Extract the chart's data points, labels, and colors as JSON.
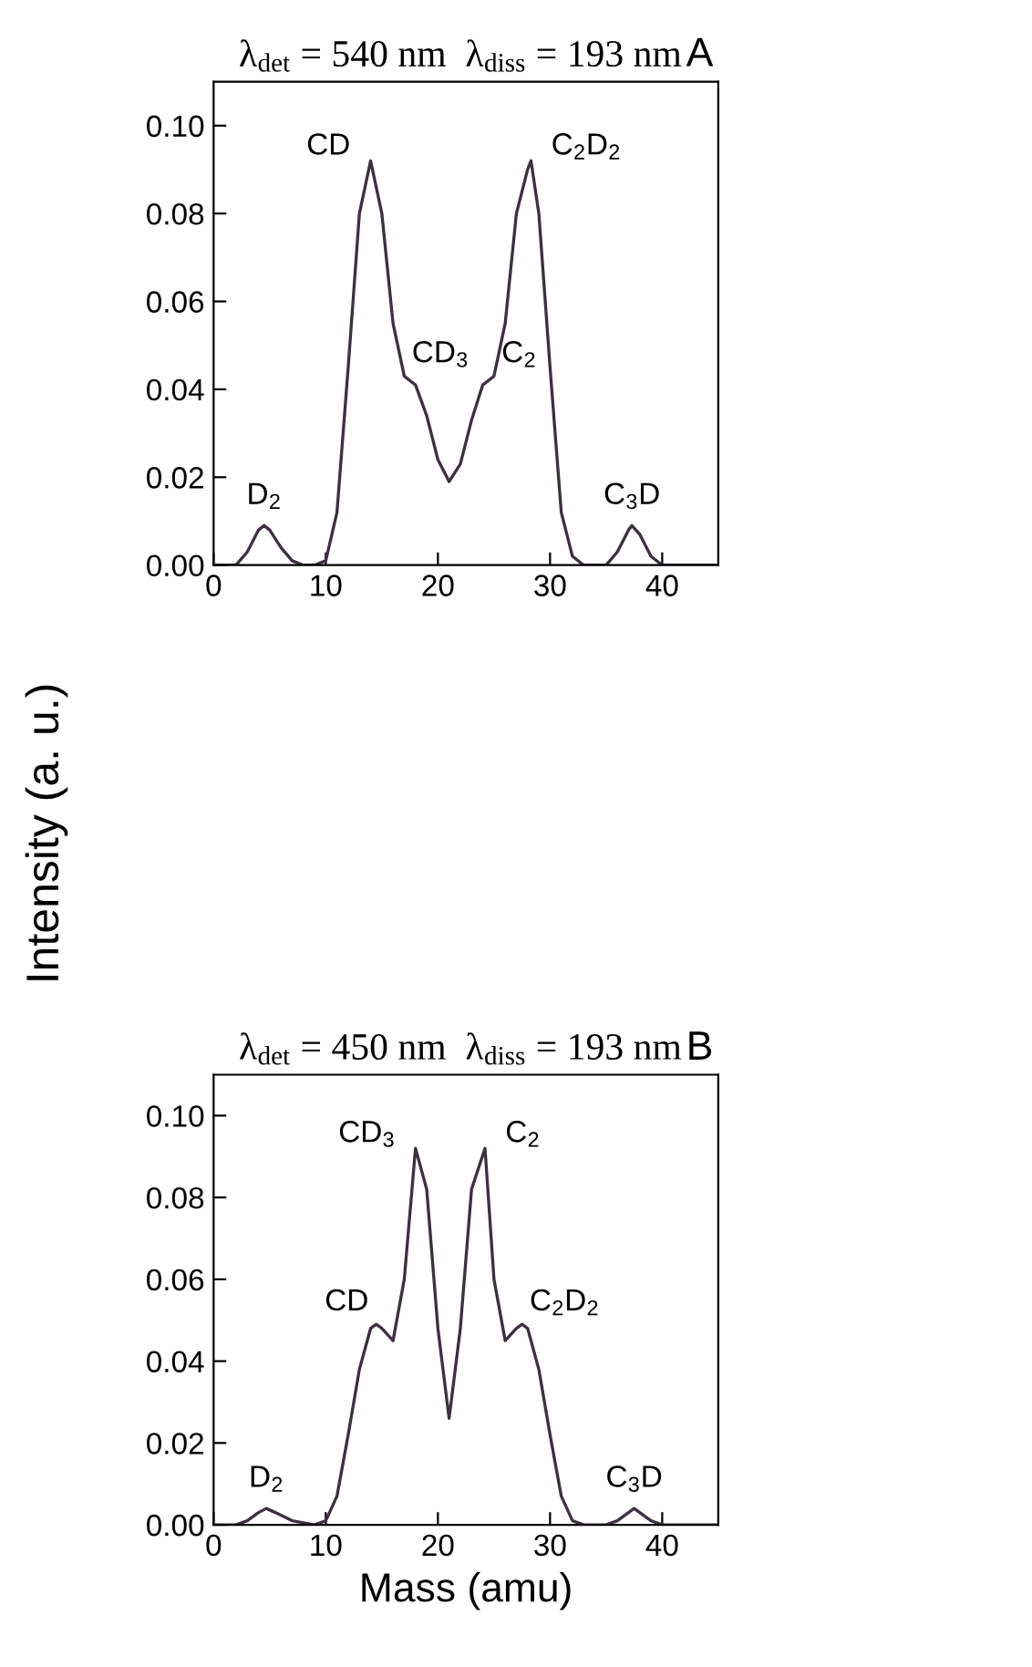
{
  "chart_data": [
    {
      "type": "line",
      "title": "λ$_{det}$ = 540 nm  λ$_{diss}$ = 193 nm",
      "ylabel": "Intensity (a. u.)",
      "xlim": [
        0,
        45
      ],
      "ylim": [
        0,
        0.11
      ],
      "xticks": [
        0,
        10,
        20,
        30,
        40
      ],
      "yticks": [
        {
          "value": 0,
          "label": "0.00"
        },
        {
          "value": 0.02,
          "label": "0.02"
        },
        {
          "value": 0.04,
          "label": "0.04"
        },
        {
          "value": 0.06,
          "label": "0.06"
        },
        {
          "value": 0.08,
          "label": "0.08"
        },
        {
          "value": 0.1,
          "label": "0.10"
        }
      ],
      "grid": false,
      "legend": false,
      "marker": "none",
      "line_style": "solid",
      "series": [
        {
          "color": "#3d3040",
          "x": [
            0,
            2,
            3,
            4,
            4.5,
            5,
            6,
            7,
            8,
            9,
            10,
            11,
            12,
            13,
            14,
            15,
            16,
            17,
            18,
            19,
            20,
            21,
            22,
            23,
            24,
            25,
            26,
            27,
            28,
            28.3,
            29,
            30,
            31,
            32,
            33,
            34,
            35,
            36,
            37,
            37.3,
            38,
            39,
            40,
            42,
            45
          ],
          "values": [
            0,
            0,
            0.003,
            0.008,
            0.009,
            0.008,
            0.004,
            0.001,
            0,
            0,
            0.001,
            0.012,
            0.045,
            0.08,
            0.092,
            0.08,
            0.055,
            0.043,
            0.041,
            0.034,
            0.024,
            0.019,
            0.023,
            0.033,
            0.041,
            0.043,
            0.055,
            0.08,
            0.09,
            0.092,
            0.08,
            0.045,
            0.012,
            0.002,
            0,
            0,
            0,
            0.003,
            0.008,
            0.009,
            0.007,
            0.002,
            0,
            0,
            0
          ]
        }
      ],
      "annotations": [
        {
          "text": "D$_{2}$",
          "x": 4.5,
          "y": 0.009
        },
        {
          "text": "CD",
          "x": 14,
          "y": 0.092
        },
        {
          "text": "CD$_{3}$",
          "x": 17,
          "y": 0.043
        },
        {
          "text": "C$_{2}$",
          "x": 25,
          "y": 0.043
        },
        {
          "text": "C$_{2}$D$_{2}$",
          "x": 28.3,
          "y": 0.092
        },
        {
          "text": "C$_{3}$D",
          "x": 37.3,
          "y": 0.009
        },
        "A"
      ]
    },
    {
      "type": "line",
      "title": "λ$_{det}$ = 450 nm  λ$_{diss}$ = 193 nm",
      "xlabel": "Mass (amu)",
      "xlim": [
        0,
        45
      ],
      "ylim": [
        0,
        0.11
      ],
      "xticks": [
        0,
        10,
        20,
        30,
        40
      ],
      "yticks": [
        {
          "value": 0,
          "label": "0.00"
        },
        {
          "value": 0.02,
          "label": "0.02"
        },
        {
          "value": 0.04,
          "label": "0.04"
        },
        {
          "value": 0.06,
          "label": "0.06"
        },
        {
          "value": 0.08,
          "label": "0.08"
        },
        {
          "value": 0.1,
          "label": "0.10"
        }
      ],
      "grid": false,
      "legend": false,
      "marker": "none",
      "line_style": "solid",
      "series": [
        {
          "color": "#3d3040",
          "x": [
            0,
            2,
            3,
            4,
            4.7,
            5.5,
            7,
            9,
            10,
            11,
            12,
            13,
            14,
            14.5,
            15,
            16,
            17,
            18,
            19,
            20,
            21,
            22,
            23,
            24.2,
            25,
            26,
            27,
            27.5,
            28,
            29,
            30,
            31,
            32,
            33,
            35,
            36,
            37,
            37.5,
            38,
            39,
            40,
            42,
            45
          ],
          "values": [
            0,
            0,
            0.001,
            0.003,
            0.004,
            0.003,
            0.001,
            0,
            0.001,
            0.007,
            0.022,
            0.038,
            0.048,
            0.049,
            0.048,
            0.045,
            0.06,
            0.092,
            0.082,
            0.048,
            0.026,
            0.048,
            0.082,
            0.092,
            0.06,
            0.045,
            0.048,
            0.049,
            0.048,
            0.038,
            0.022,
            0.007,
            0.001,
            0,
            0,
            0.001,
            0.003,
            0.004,
            0.003,
            0.001,
            0,
            0,
            0
          ]
        }
      ],
      "annotations": [
        {
          "text": "D$_{2}$",
          "x": 4.7,
          "y": 0.004
        },
        {
          "text": "CD",
          "x": 14.5,
          "y": 0.049
        },
        {
          "text": "CD$_{3}$",
          "x": 18,
          "y": 0.092
        },
        {
          "text": "C$_{2}$",
          "x": 24.2,
          "y": 0.092
        },
        {
          "text": "C$_{2}$D$_{2}$",
          "x": 27.5,
          "y": 0.049
        },
        {
          "text": "C$_{3}$D",
          "x": 37.5,
          "y": 0.004
        },
        "B"
      ]
    }
  ]
}
